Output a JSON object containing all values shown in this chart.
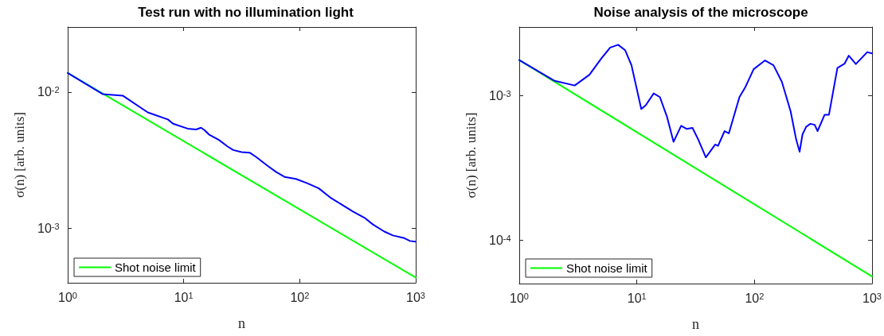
{
  "chart_data": [
    {
      "type": "line",
      "title": "Test run with no illumination light",
      "xlabel": "n",
      "ylabel": "σ(n) [arb. units]",
      "log": "xy",
      "grid": false,
      "legend": "bottom left",
      "marker": "none",
      "line_style": "solid",
      "xlim": [
        1,
        1000
      ],
      "xticks": [
        {
          "value": 1,
          "label": "10$^{0}$"
        },
        {
          "value": 10,
          "label": "10$^{1}$"
        },
        {
          "value": 100,
          "label": "10$^{2}$"
        },
        {
          "value": 1000,
          "label": "10$^{3}$"
        }
      ],
      "ylim": [
        0.0004,
        0.03
      ],
      "yticks": [
        {
          "value": 0.001,
          "label": "10$^{-3}$"
        },
        {
          "value": 0.01,
          "label": "10$^{-2}$"
        }
      ],
      "series": [
        {
          "color": "#0000ff",
          "x": [
            1,
            2,
            3,
            4.9,
            7.3,
            8.1,
            10.8,
            12.8,
            14.1,
            15.1,
            16.5,
            20.1,
            23.8,
            26.7,
            31.6,
            37,
            42,
            52.6,
            62.4,
            74,
            92.7,
            116,
            146,
            183,
            229,
            288,
            361,
            428,
            536,
            635,
            797,
            893,
            1000
          ],
          "values": [
            0.0138,
            0.00967,
            0.0094,
            0.0071,
            0.0063,
            0.00586,
            0.0054,
            0.00532,
            0.00548,
            0.00527,
            0.00489,
            0.00446,
            0.004,
            0.00376,
            0.00363,
            0.0036,
            0.00335,
            0.00289,
            0.0026,
            0.00239,
            0.00231,
            0.00215,
            0.00197,
            0.00169,
            0.0015,
            0.00133,
            0.0012,
            0.00107,
            0.00095,
            0.00089,
            0.00085,
            0.00081,
            0.0008
          ]
        },
        {
          "name": "Shot noise limit",
          "color": "#00ff00",
          "x": [
            1,
            1000
          ],
          "values": [
            0.0138,
            0.000437
          ]
        }
      ]
    },
    {
      "type": "line",
      "title": "Noise analysis of the microscope",
      "xlabel": "n",
      "ylabel": "σ(n) [arb. units]",
      "log": "xy",
      "grid": false,
      "legend": "bottom left",
      "marker": "none",
      "line_style": "solid",
      "xlim": [
        1,
        1000
      ],
      "xticks": [
        {
          "value": 1,
          "label": "10$^{0}$"
        },
        {
          "value": 10,
          "label": "10$^{1}$"
        },
        {
          "value": 100,
          "label": "10$^{2}$"
        },
        {
          "value": 1000,
          "label": "10$^{3}$"
        }
      ],
      "ylim": [
        5e-05,
        0.003
      ],
      "yticks": [
        {
          "value": 0.0001,
          "label": "10$^{-4}$"
        },
        {
          "value": 0.001,
          "label": "10$^{-3}$"
        }
      ],
      "series": [
        {
          "color": "#0000ff",
          "x": [
            1,
            2,
            2.96,
            3.95,
            5,
            5.93,
            6.93,
            7.96,
            9,
            10.9,
            11.9,
            13.9,
            15.7,
            18,
            20.5,
            23.8,
            26.6,
            29.7,
            33.2,
            38.6,
            46.4,
            49,
            55.7,
            60.6,
            74.5,
            83.2,
            98.4,
            123,
            145,
            171,
            203,
            226,
            242,
            256,
            275,
            299,
            325,
            344,
            395,
            430,
            507,
            583,
            634,
            728,
            909,
            1000
          ],
          "values": [
            0.00177,
            0.00127,
            0.00118,
            0.0014,
            0.00182,
            0.00216,
            0.00226,
            0.00207,
            0.00163,
            0.00081,
            0.00086,
            0.00104,
            0.00098,
            0.00072,
            0.00048,
            0.00062,
            0.00059,
            0.0006,
            0.0005,
            0.000375,
            0.00046,
            0.00045,
            0.00057,
            0.00055,
            0.00098,
            0.00114,
            0.00153,
            0.00176,
            0.00163,
            0.00125,
            0.00078,
            0.0005,
            0.00041,
            0.00054,
            0.00061,
            0.00064,
            0.00063,
            0.00057,
            0.00074,
            0.00074,
            0.00156,
            0.00167,
            0.0019,
            0.00166,
            0.00201,
            0.00197
          ]
        },
        {
          "name": "Shot noise limit",
          "color": "#00ff00",
          "x": [
            1,
            1000
          ],
          "values": [
            0.00177,
            5.6e-05
          ]
        }
      ]
    }
  ]
}
